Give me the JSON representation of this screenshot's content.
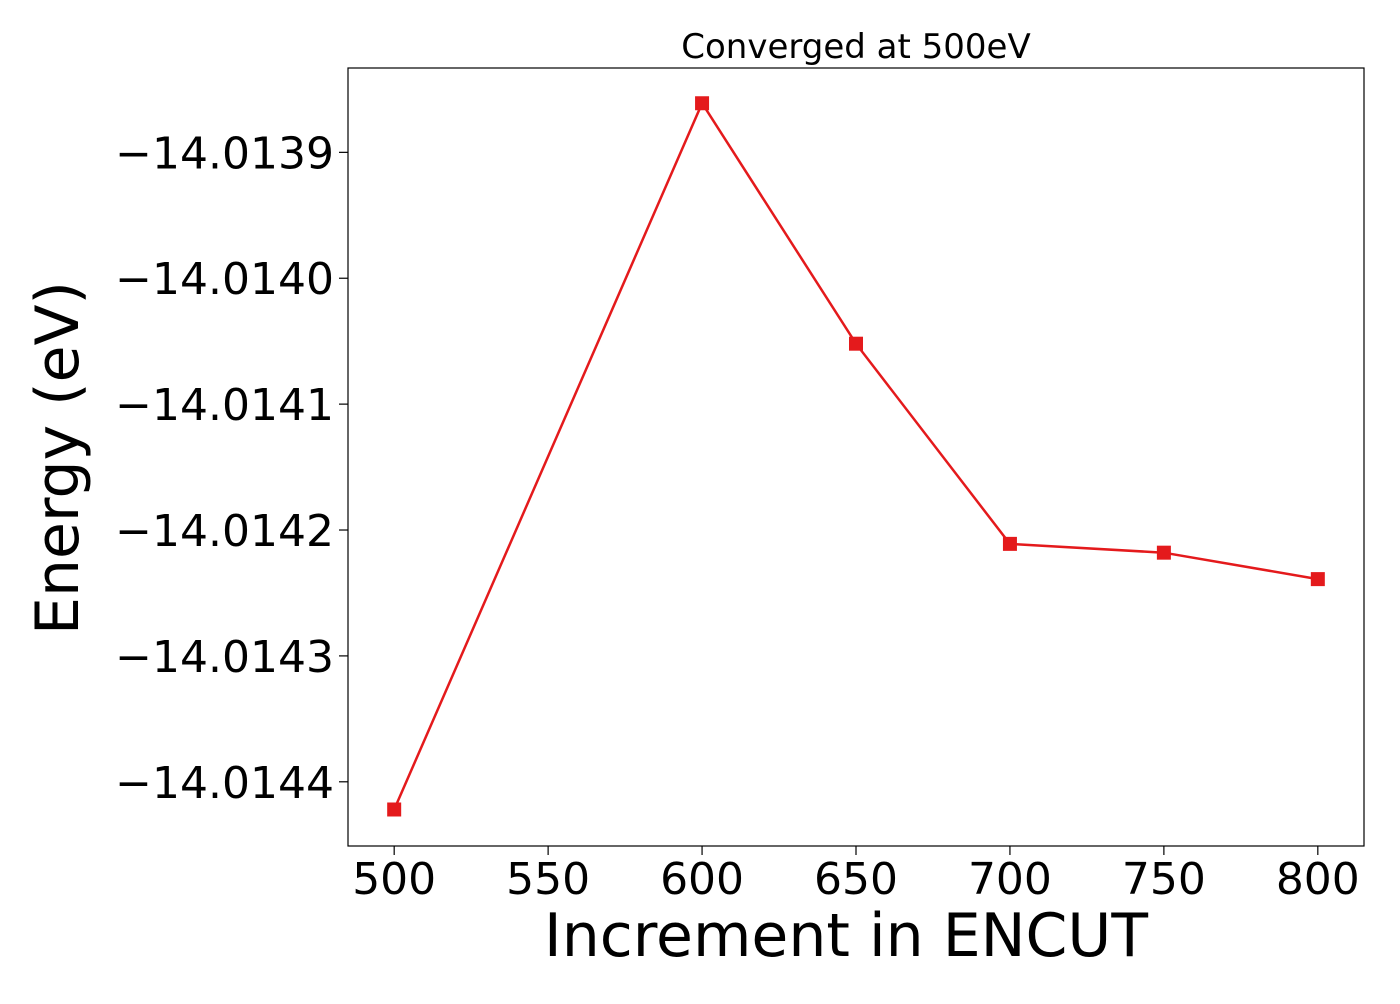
{
  "chart_data": {
    "type": "line",
    "title": "Converged at 500eV",
    "xlabel": "Increment in ENCUT",
    "ylabel": "Energy (eV)",
    "x": [
      500,
      600,
      650,
      700,
      750,
      800
    ],
    "series": [
      {
        "values": [
          -14.014422,
          -14.013861,
          -14.014052,
          -14.014211,
          -14.014218,
          -14.014239
        ],
        "color": "#e41a1c",
        "marker": "square"
      }
    ],
    "xticks": [
      500,
      550,
      600,
      650,
      700,
      750,
      800
    ],
    "xtick_labels": [
      "500",
      "550",
      "600",
      "650",
      "700",
      "750",
      "800"
    ],
    "yticks": [
      -14.0139,
      -14.014,
      -14.0141,
      -14.0142,
      -14.0143,
      -14.0144
    ],
    "ytick_labels": [
      "−14.0139",
      "−14.0140",
      "−14.0141",
      "−14.0142",
      "−14.0143",
      "−14.0144"
    ],
    "xlim": [
      485,
      815
    ],
    "ylim": [
      -14.014451,
      -14.013833
    ],
    "grid": false,
    "legend": false
  }
}
